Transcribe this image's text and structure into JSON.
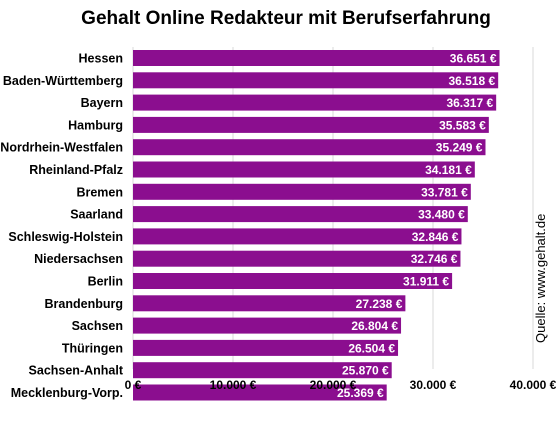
{
  "chart_data": {
    "type": "bar",
    "orientation": "horizontal",
    "title": "Gehalt Online Redakteur mit Berufserfahrung",
    "source": "Quelle: www.gehalt.de",
    "categories": [
      "Hessen",
      "Baden-Württemberg",
      "Bayern",
      "Hamburg",
      "Nordrhein-Westfalen",
      "Rheinland-Pfalz",
      "Bremen",
      "Saarland",
      "Schleswig-Holstein",
      "Niedersachsen",
      "Berlin",
      "Brandenburg",
      "Sachsen",
      "Thüringen",
      "Sachsen-Anhalt",
      "Mecklenburg-Vorp."
    ],
    "values": [
      36651,
      36518,
      36317,
      35583,
      35249,
      34181,
      33781,
      33480,
      32846,
      32746,
      31911,
      27238,
      26804,
      26504,
      25870,
      25369
    ],
    "data_labels": [
      "36.651 €",
      "36.518 €",
      "36.317 €",
      "35.583 €",
      "35.249 €",
      "34.181 €",
      "33.781 €",
      "33.480 €",
      "32.846 €",
      "32.746 €",
      "31.911 €",
      "27.238 €",
      "26.804 €",
      "26.504 €",
      "25.870 €",
      "25.369 €"
    ],
    "xlim": [
      0,
      40000
    ],
    "xticks": [
      0,
      10000,
      20000,
      30000,
      40000
    ],
    "xtick_labels": [
      "0 €",
      "10.000 €",
      "20.000 €",
      "30.000 €",
      "40.000 €"
    ],
    "grid": true,
    "legend": "none",
    "bar_color": "#8b0e8f"
  }
}
